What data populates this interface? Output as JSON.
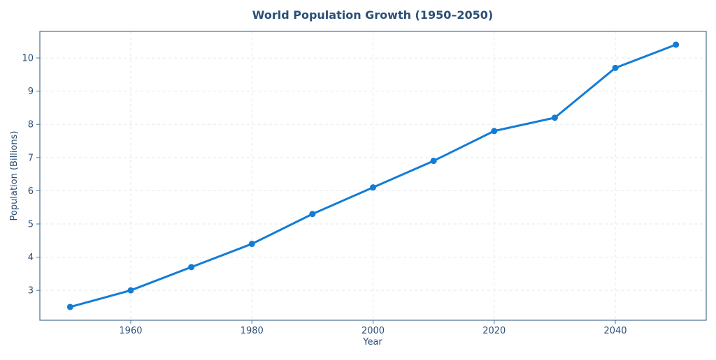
{
  "chart_data": {
    "type": "line",
    "title": "World Population Growth (1950–2050)",
    "xlabel": "Year",
    "ylabel": "Population (Billions)",
    "x": [
      1950,
      1960,
      1970,
      1980,
      1990,
      2000,
      2010,
      2020,
      2030,
      2040,
      2050
    ],
    "series": [
      {
        "values": [
          2.5,
          3.0,
          3.7,
          4.4,
          5.3,
          6.1,
          6.9,
          7.8,
          8.2,
          9.7,
          10.4
        ]
      }
    ],
    "xlim": [
      1945,
      2055
    ],
    "ylim": [
      2.1,
      10.8
    ],
    "x_ticks": [
      1960,
      1980,
      2000,
      2020,
      2040
    ],
    "y_ticks": [
      3,
      4,
      5,
      6,
      7,
      8,
      9,
      10
    ],
    "grid": true,
    "legend": "none"
  },
  "colors": {
    "line": "#137cd6",
    "text": "#2a4f76",
    "axes": "#4a6f94",
    "grid": "#e3e8ee",
    "background": "#ffffff"
  }
}
